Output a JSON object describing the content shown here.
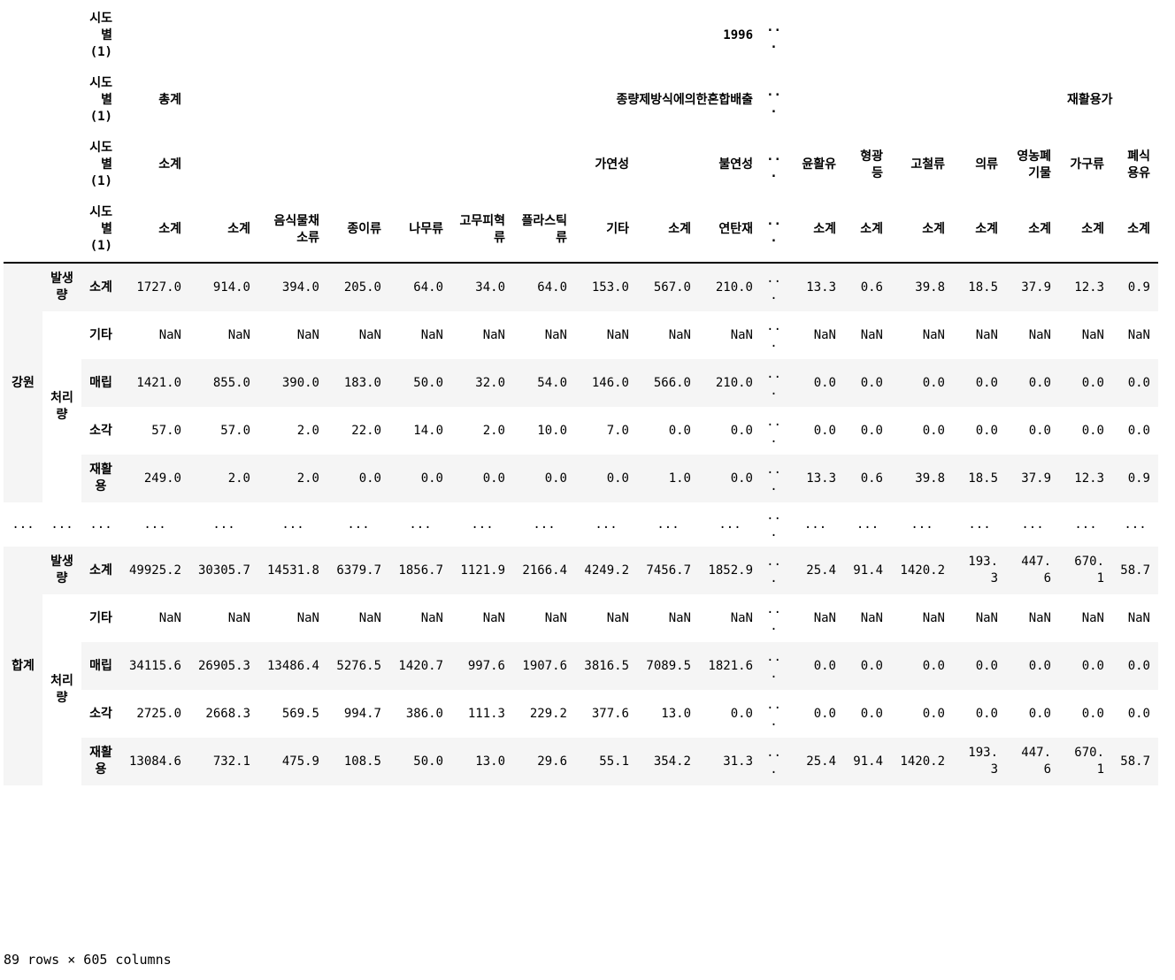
{
  "table": {
    "column_level_names": [
      "시도별(1)",
      "시도별(1)",
      "시도별(1)",
      "시도별(1)"
    ],
    "header_rows": [
      [
        "1996",
        null,
        null,
        null,
        null,
        null,
        null,
        null,
        null,
        null,
        "...",
        null,
        null,
        null,
        null,
        null,
        null
      ],
      [
        "총계",
        "종량제방식에의한혼합배출",
        null,
        null,
        null,
        null,
        null,
        null,
        null,
        null,
        "...",
        null,
        null,
        null,
        null,
        null,
        "재활용가"
      ],
      [
        "소계",
        "가연성",
        null,
        null,
        null,
        null,
        null,
        null,
        "불연성",
        null,
        "...",
        "윤활유",
        "형광등",
        "고철류",
        "의류",
        "영농폐기물",
        "가구류",
        "폐식용유"
      ],
      [
        "소계",
        "소계",
        "음식물채소류",
        "종이류",
        "나무류",
        "고무피혁류",
        "플라스틱류",
        "기타",
        "소계",
        "연탄재",
        "...",
        "소계",
        "소계",
        "소계",
        "소계",
        "소계",
        "소계",
        "소계"
      ]
    ],
    "rows": [
      {
        "index": [
          "강원",
          "발생량",
          "소계"
        ],
        "values": [
          "1727.0",
          "914.0",
          "394.0",
          "205.0",
          "64.0",
          "34.0",
          "64.0",
          "153.0",
          "567.0",
          "210.0",
          "...",
          "13.3",
          "0.6",
          "39.8",
          "18.5",
          "37.9",
          "12.3",
          "0.9"
        ]
      },
      {
        "index": [
          null,
          "처리량",
          "기타"
        ],
        "values": [
          "NaN",
          "NaN",
          "NaN",
          "NaN",
          "NaN",
          "NaN",
          "NaN",
          "NaN",
          "NaN",
          "NaN",
          "...",
          "NaN",
          "NaN",
          "NaN",
          "NaN",
          "NaN",
          "NaN",
          "NaN"
        ]
      },
      {
        "index": [
          null,
          null,
          "매립"
        ],
        "values": [
          "1421.0",
          "855.0",
          "390.0",
          "183.0",
          "50.0",
          "32.0",
          "54.0",
          "146.0",
          "566.0",
          "210.0",
          "...",
          "0.0",
          "0.0",
          "0.0",
          "0.0",
          "0.0",
          "0.0",
          "0.0"
        ]
      },
      {
        "index": [
          null,
          null,
          "소각"
        ],
        "values": [
          "57.0",
          "57.0",
          "2.0",
          "22.0",
          "14.0",
          "2.0",
          "10.0",
          "7.0",
          "0.0",
          "0.0",
          "...",
          "0.0",
          "0.0",
          "0.0",
          "0.0",
          "0.0",
          "0.0",
          "0.0"
        ]
      },
      {
        "index": [
          null,
          null,
          "재활용"
        ],
        "values": [
          "249.0",
          "2.0",
          "2.0",
          "0.0",
          "0.0",
          "0.0",
          "0.0",
          "0.0",
          "1.0",
          "0.0",
          "...",
          "13.3",
          "0.6",
          "39.8",
          "18.5",
          "37.9",
          "12.3",
          "0.9"
        ]
      },
      {
        "index": [
          "...",
          "...",
          "..."
        ],
        "values": [
          "...",
          "...",
          "...",
          "...",
          "...",
          "...",
          "...",
          "...",
          "...",
          "...",
          "...",
          "...",
          "...",
          "...",
          "...",
          "...",
          "...",
          "..."
        ]
      },
      {
        "index": [
          "합계",
          "발생량",
          "소계"
        ],
        "values": [
          "49925.2",
          "30305.7",
          "14531.8",
          "6379.7",
          "1856.7",
          "1121.9",
          "2166.4",
          "4249.2",
          "7456.7",
          "1852.9",
          "...",
          "25.4",
          "91.4",
          "1420.2",
          "193.3",
          "447.6",
          "670.1",
          "58.7"
        ]
      },
      {
        "index": [
          null,
          "처리량",
          "기타"
        ],
        "values": [
          "NaN",
          "NaN",
          "NaN",
          "NaN",
          "NaN",
          "NaN",
          "NaN",
          "NaN",
          "NaN",
          "NaN",
          "...",
          "NaN",
          "NaN",
          "NaN",
          "NaN",
          "NaN",
          "NaN",
          "NaN"
        ]
      },
      {
        "index": [
          null,
          null,
          "매립"
        ],
        "values": [
          "34115.6",
          "26905.3",
          "13486.4",
          "5276.5",
          "1420.7",
          "997.6",
          "1907.6",
          "3816.5",
          "7089.5",
          "1821.6",
          "...",
          "0.0",
          "0.0",
          "0.0",
          "0.0",
          "0.0",
          "0.0",
          "0.0"
        ]
      },
      {
        "index": [
          null,
          null,
          "소각"
        ],
        "values": [
          "2725.0",
          "2668.3",
          "569.5",
          "994.7",
          "386.0",
          "111.3",
          "229.2",
          "377.6",
          "13.0",
          "0.0",
          "...",
          "0.0",
          "0.0",
          "0.0",
          "0.0",
          "0.0",
          "0.0",
          "0.0"
        ]
      },
      {
        "index": [
          null,
          null,
          "재활용"
        ],
        "values": [
          "13084.6",
          "732.1",
          "475.9",
          "108.5",
          "50.0",
          "13.0",
          "29.6",
          "55.1",
          "354.2",
          "31.3",
          "...",
          "25.4",
          "91.4",
          "1420.2",
          "193.3",
          "447.6",
          "670.1",
          "58.7"
        ]
      }
    ]
  },
  "footer": "89 rows × 605 columns"
}
